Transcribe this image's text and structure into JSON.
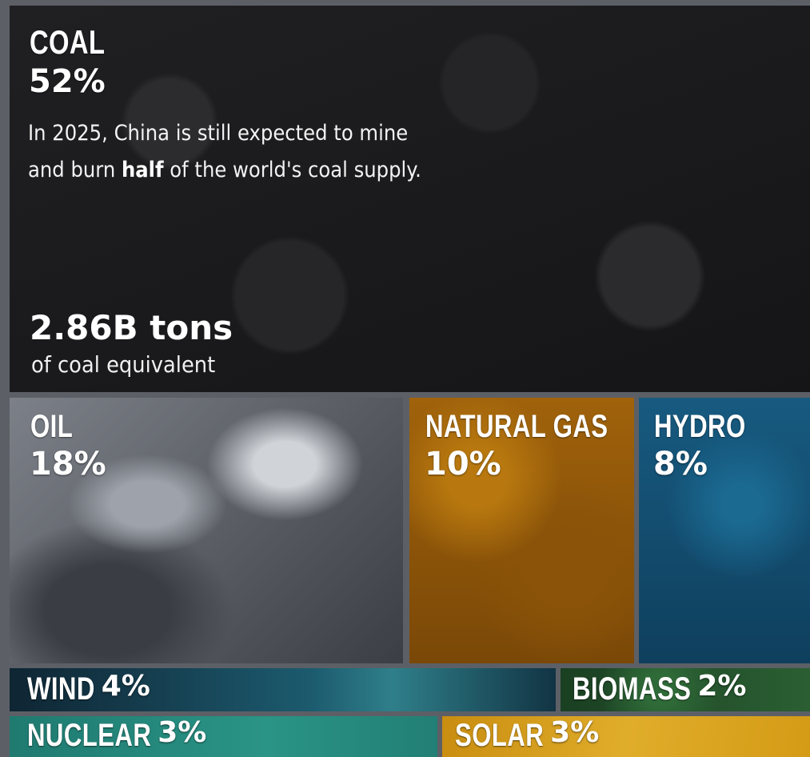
{
  "chart_data": {
    "type": "treemap",
    "unit": "%",
    "items": [
      {
        "name": "COAL",
        "value": 52,
        "label": "52%",
        "color": "#1d1d1f"
      },
      {
        "name": "OIL",
        "value": 18,
        "label": "18%",
        "color": "#5e6168"
      },
      {
        "name": "NATURAL GAS",
        "value": 10,
        "label": "10%",
        "color": "#9a5e0c"
      },
      {
        "name": "HYDRO",
        "value": 8,
        "label": "8%",
        "color": "#124a6b"
      },
      {
        "name": "WIND",
        "value": 4,
        "label": "4%",
        "color": "#17394a"
      },
      {
        "name": "BIOMASS",
        "value": 2,
        "label": "2%",
        "color": "#1e4a2a"
      },
      {
        "name": "NUCLEAR",
        "value": 3,
        "label": "3%",
        "color": "#24867a"
      },
      {
        "name": "SOLAR",
        "value": 3,
        "label": "3%",
        "color": "#d49b16"
      }
    ]
  },
  "coal_note": {
    "line1": "In 2025, China is still expected to mine",
    "line2_pre": "and burn ",
    "line2_bold": "half",
    "line2_post": " of the world's coal supply.",
    "amount": "2.86B tons",
    "amount_unit": "of coal equivalent"
  }
}
